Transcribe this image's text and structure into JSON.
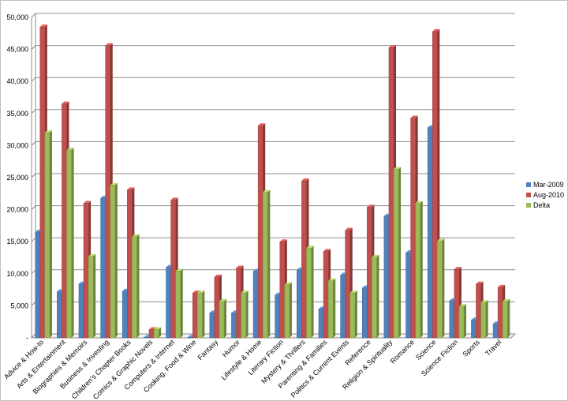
{
  "chart_data": {
    "type": "bar",
    "title": "",
    "xlabel": "",
    "ylabel": "",
    "ylim": [
      0,
      50000
    ],
    "y_tick_step": 5000,
    "grid": true,
    "legend_position": "right",
    "categories": [
      "Advice & How-to",
      "Arts & Entertainment",
      "Biographies & Memoirs",
      "Business & Investing",
      "Children's Chapter Books",
      "Comics & Graphic Novels",
      "Computers & Internet",
      "Cooking, Food & Wine",
      "Fantasy",
      "Humor",
      "Lifestyle & Home",
      "Literary Fiction",
      "Mystery & Thrillers",
      "Parenting & Families",
      "Politics & Current Events",
      "Reference",
      "Religion & Spirituality",
      "Romance",
      "Science",
      "Science Fiction",
      "Sports",
      "Travel"
    ],
    "series": [
      {
        "name": "Mar-2009",
        "color": "#4f81bd",
        "values": [
          16500,
          7200,
          8400,
          21800,
          7300,
          100,
          11000,
          100,
          3900,
          3900,
          10400,
          6700,
          10600,
          4500,
          9800,
          7800,
          19000,
          13300,
          32800,
          5800,
          2800,
          2200
        ]
      },
      {
        "name": "Aug-2010",
        "color": "#c0504d",
        "values": [
          48500,
          36500,
          21000,
          45600,
          23100,
          1300,
          21500,
          7000,
          9500,
          10900,
          33100,
          15000,
          24500,
          13500,
          16800,
          20400,
          45300,
          34300,
          47800,
          10700,
          8400,
          7900
        ]
      },
      {
        "name": "Delta",
        "color": "#9bbb59",
        "values": [
          32000,
          29300,
          12700,
          23800,
          15800,
          1300,
          10400,
          7000,
          5700,
          7000,
          22700,
          8300,
          14000,
          8900,
          7000,
          12600,
          26300,
          21000,
          15100,
          4900,
          5500,
          5700
        ]
      }
    ]
  }
}
